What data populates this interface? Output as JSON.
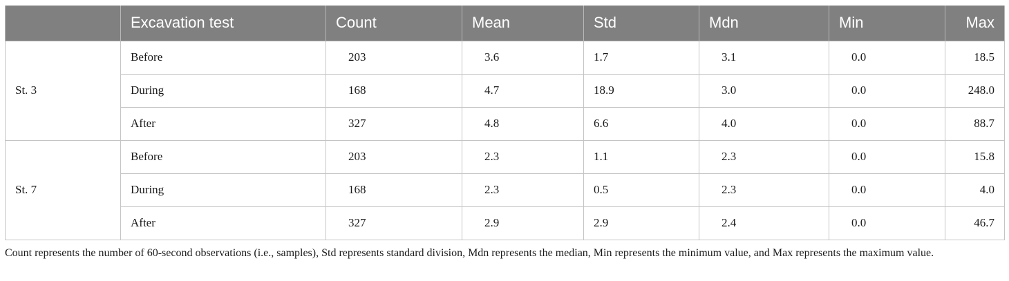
{
  "table": {
    "headers": [
      "",
      "Excavation test",
      "Count",
      "Mean",
      "Std",
      "Mdn",
      "Min",
      "Max"
    ],
    "groups": [
      {
        "station": "St. 3",
        "rows": [
          {
            "phase": "Before",
            "count": "203",
            "mean": "3.6",
            "std": "1.7",
            "mdn": "3.1",
            "min": "0.0",
            "max": "18.5"
          },
          {
            "phase": "During",
            "count": "168",
            "mean": "4.7",
            "std": "18.9",
            "mdn": "3.0",
            "min": "0.0",
            "max": "248.0"
          },
          {
            "phase": "After",
            "count": "327",
            "mean": "4.8",
            "std": "6.6",
            "mdn": "4.0",
            "min": "0.0",
            "max": "88.7"
          }
        ]
      },
      {
        "station": "St. 7",
        "rows": [
          {
            "phase": "Before",
            "count": "203",
            "mean": "2.3",
            "std": "1.1",
            "mdn": "2.3",
            "min": "0.0",
            "max": "15.8"
          },
          {
            "phase": "During",
            "count": "168",
            "mean": "2.3",
            "std": "0.5",
            "mdn": "2.3",
            "min": "0.0",
            "max": "4.0"
          },
          {
            "phase": "After",
            "count": "327",
            "mean": "2.9",
            "std": "2.9",
            "mdn": "2.4",
            "min": "0.0",
            "max": "46.7"
          }
        ]
      }
    ]
  },
  "footnote": "Count represents the number of 60-second observations (i.e., samples), Std represents standard division, Mdn represents the median, Min represents the minimum value, and Max represents the maximum value.",
  "colors": {
    "header_background": "#808080",
    "header_text": "#ffffff",
    "grid_lines": "#c4c4c4"
  }
}
